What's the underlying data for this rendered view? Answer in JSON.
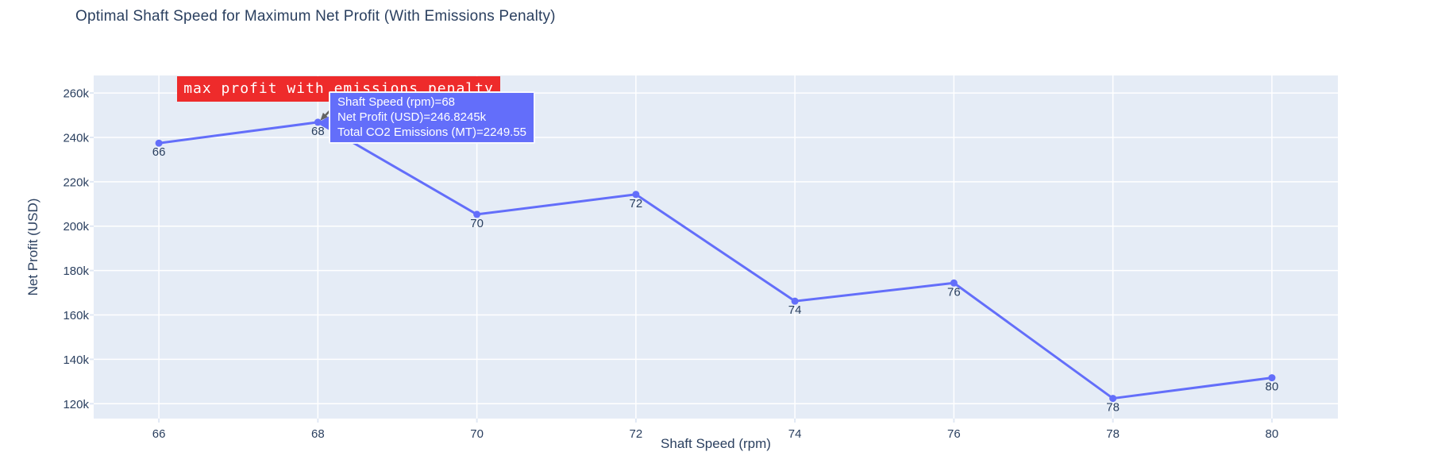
{
  "title": "Optimal Shaft Speed for Maximum Net Profit (With Emissions Penalty)",
  "chart_data": {
    "type": "line",
    "x": [
      66,
      68,
      70,
      72,
      74,
      76,
      78,
      80
    ],
    "y": [
      237400,
      246824.5,
      205300,
      214300,
      166200,
      174400,
      122400,
      131700
    ],
    "point_labels": [
      "66",
      "68",
      "70",
      "72",
      "74",
      "76",
      "78",
      "80"
    ],
    "title": "Optimal Shaft Speed for Maximum Net Profit (With Emissions Penalty)",
    "xlabel": "Shaft Speed (rpm)",
    "ylabel": "Net Profit (USD)",
    "x_ticks": [
      66,
      68,
      70,
      72,
      74,
      76,
      78,
      80
    ],
    "x_tick_labels": [
      "66",
      "68",
      "70",
      "72",
      "74",
      "76",
      "78",
      "80"
    ],
    "y_ticks": [
      120000,
      140000,
      160000,
      180000,
      200000,
      220000,
      240000,
      260000
    ],
    "y_tick_labels": [
      "120k",
      "140k",
      "160k",
      "180k",
      "200k",
      "220k",
      "240k",
      "260k"
    ],
    "xlim": [
      65.18,
      80.83
    ],
    "ylim": [
      113300,
      267900
    ],
    "grid": true,
    "legend": "none",
    "line_color": "#636efa",
    "marker_color": "#636efa",
    "plot_bg": "#e5ecf6",
    "grid_color": "#ffffff",
    "axis_text_color": "#2a3f5f",
    "tick_mark_color": "#e0e8f4"
  },
  "annotation": {
    "text": "max profit with emissions penalty",
    "bg": "#ee2b2b",
    "text_color": "#ffffff",
    "arrow_color": "#636363"
  },
  "tooltip": {
    "lines": [
      "Shaft Speed (rpm)=68",
      "Net Profit (USD)=246.8245k",
      "Total CO2 Emissions (MT)=2249.55"
    ],
    "bg": "#636efa",
    "text_color": "#ffffff",
    "target_x": 68,
    "target_y": 246824.5
  }
}
